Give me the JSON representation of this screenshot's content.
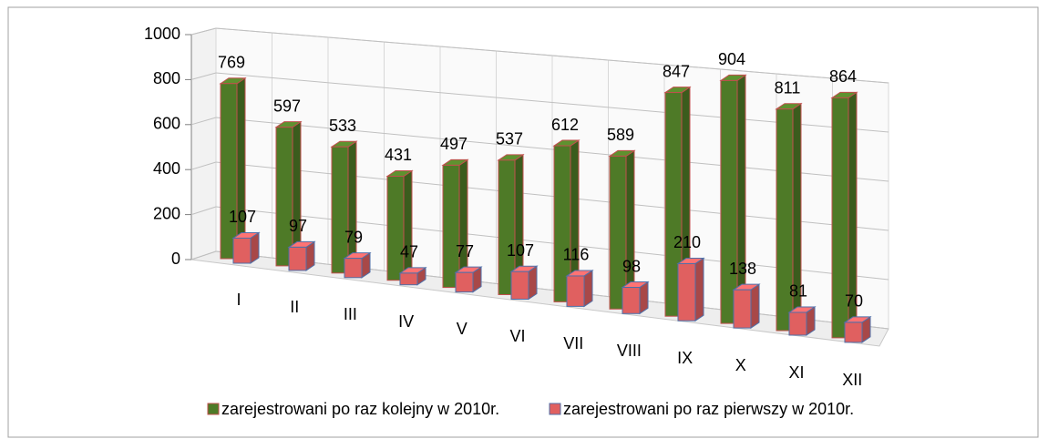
{
  "chart_data": {
    "type": "bar3d",
    "categories": [
      "I",
      "II",
      "III",
      "IV",
      "V",
      "VI",
      "VII",
      "VIII",
      "IX",
      "X",
      "XI",
      "XII"
    ],
    "series": [
      {
        "name": "zarejestrowani po raz kolejny w 2010r.",
        "color": "#4e7a27",
        "values": [
          769,
          597,
          533,
          431,
          497,
          537,
          612,
          589,
          847,
          904,
          811,
          864
        ]
      },
      {
        "name": "zarejestrowani po raz pierwszy w 2010r.",
        "color": "#e06060",
        "values": [
          107,
          97,
          79,
          47,
          77,
          107,
          116,
          98,
          210,
          138,
          81,
          70
        ]
      }
    ],
    "ylim": [
      0,
      1000
    ],
    "yticks": [
      0,
      200,
      400,
      600,
      800,
      1000
    ],
    "grid": true,
    "legend": "bottom"
  }
}
